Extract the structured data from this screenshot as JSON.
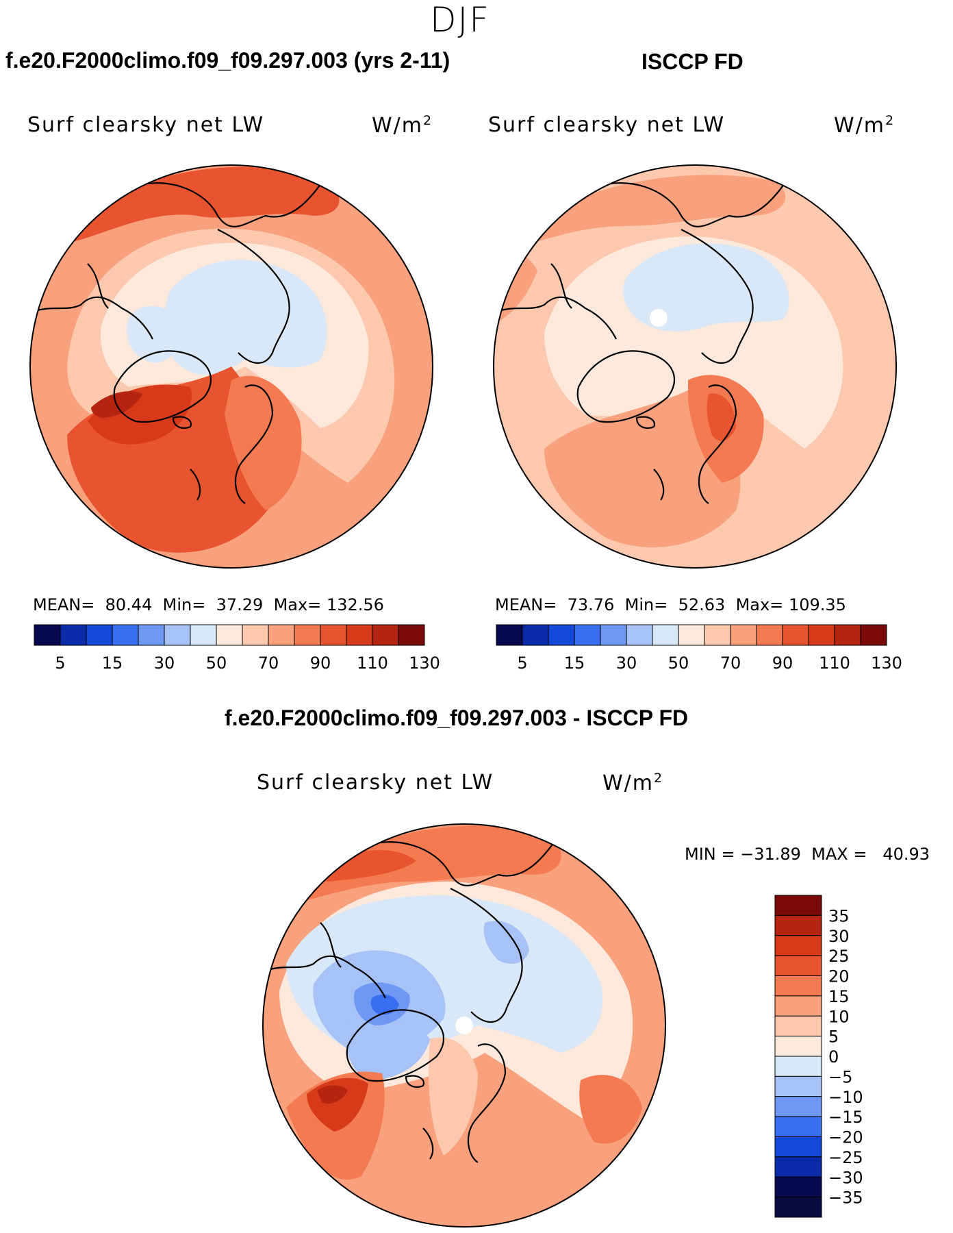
{
  "season": "DJF",
  "panels": [
    {
      "header": "f.e20.F2000climo.f09_f09.297.003 (yrs 2-11)",
      "variable": "Surf clearsky net LW",
      "units_base": "W/m",
      "units_exp": "2",
      "stats": {
        "mean_label": "MEAN=",
        "mean": "80.44",
        "min_label": "Min=",
        "min": "37.29",
        "max_label": "Max=",
        "max": "132.56"
      }
    },
    {
      "header": "ISCCP FD",
      "variable": "Surf clearsky net LW",
      "units_base": "W/m",
      "units_exp": "2",
      "stats": {
        "mean_label": "MEAN=",
        "mean": "73.76",
        "min_label": "Min=",
        "min": "52.63",
        "max_label": "Max=",
        "max": "109.35"
      }
    },
    {
      "header": "f.e20.F2000climo.f09_f09.297.003 - ISCCP FD",
      "variable": "Surf clearsky net LW",
      "units_base": "W/m",
      "units_exp": "2",
      "stats": {
        "minmax_text": "MIN = −31.89  MAX =   40.93"
      }
    }
  ],
  "colorbar_abs": {
    "colors": [
      "#08084f",
      "#0b2aa8",
      "#1448d8",
      "#3a6ef0",
      "#6f98f4",
      "#a6c2f6",
      "#d8e8f8",
      "#fde9dc",
      "#fcc8ae",
      "#f9a07c",
      "#f47a52",
      "#e85430",
      "#d63a1a",
      "#b42410",
      "#7a0a08"
    ],
    "tick_labels": [
      "5",
      "15",
      "30",
      "50",
      "70",
      "90",
      "110",
      "130"
    ]
  },
  "colorbar_diff": {
    "colors": [
      "#7a0a08",
      "#b42410",
      "#d63a1a",
      "#e85430",
      "#f47a52",
      "#f9a07c",
      "#fcc8ae",
      "#fde9dc",
      "#d8e8f8",
      "#a6c2f6",
      "#6f98f4",
      "#3a6ef0",
      "#1448d8",
      "#0b2aa8",
      "#08084f",
      "#0a0a40"
    ],
    "tick_labels": [
      "35",
      "30",
      "25",
      "20",
      "15",
      "10",
      "5",
      "0",
      "−5",
      "−10",
      "−15",
      "−20",
      "−25",
      "−30",
      "−35"
    ]
  },
  "map_colors": {
    "abs_base": "#f9a07c",
    "abs_light": "#fcc8ae",
    "abs_pale": "#fde9dc",
    "abs_cold": "#d8e8f8",
    "abs_warm": "#f47a52",
    "abs_hot": "#e85430",
    "abs_hotter": "#d63a1a",
    "abs_max": "#b42410",
    "diff_pos1": "#fcc8ae",
    "diff_pos2": "#f9a07c",
    "diff_pos3": "#f47a52",
    "diff_pos4": "#e85430",
    "diff_pos5": "#d63a1a",
    "diff_pos6": "#b42410",
    "diff_zero": "#fde9dc",
    "diff_neg1": "#d8e8f8",
    "diff_neg2": "#a6c2f6",
    "diff_neg3": "#6f98f4",
    "diff_neg4": "#3a6ef0"
  }
}
